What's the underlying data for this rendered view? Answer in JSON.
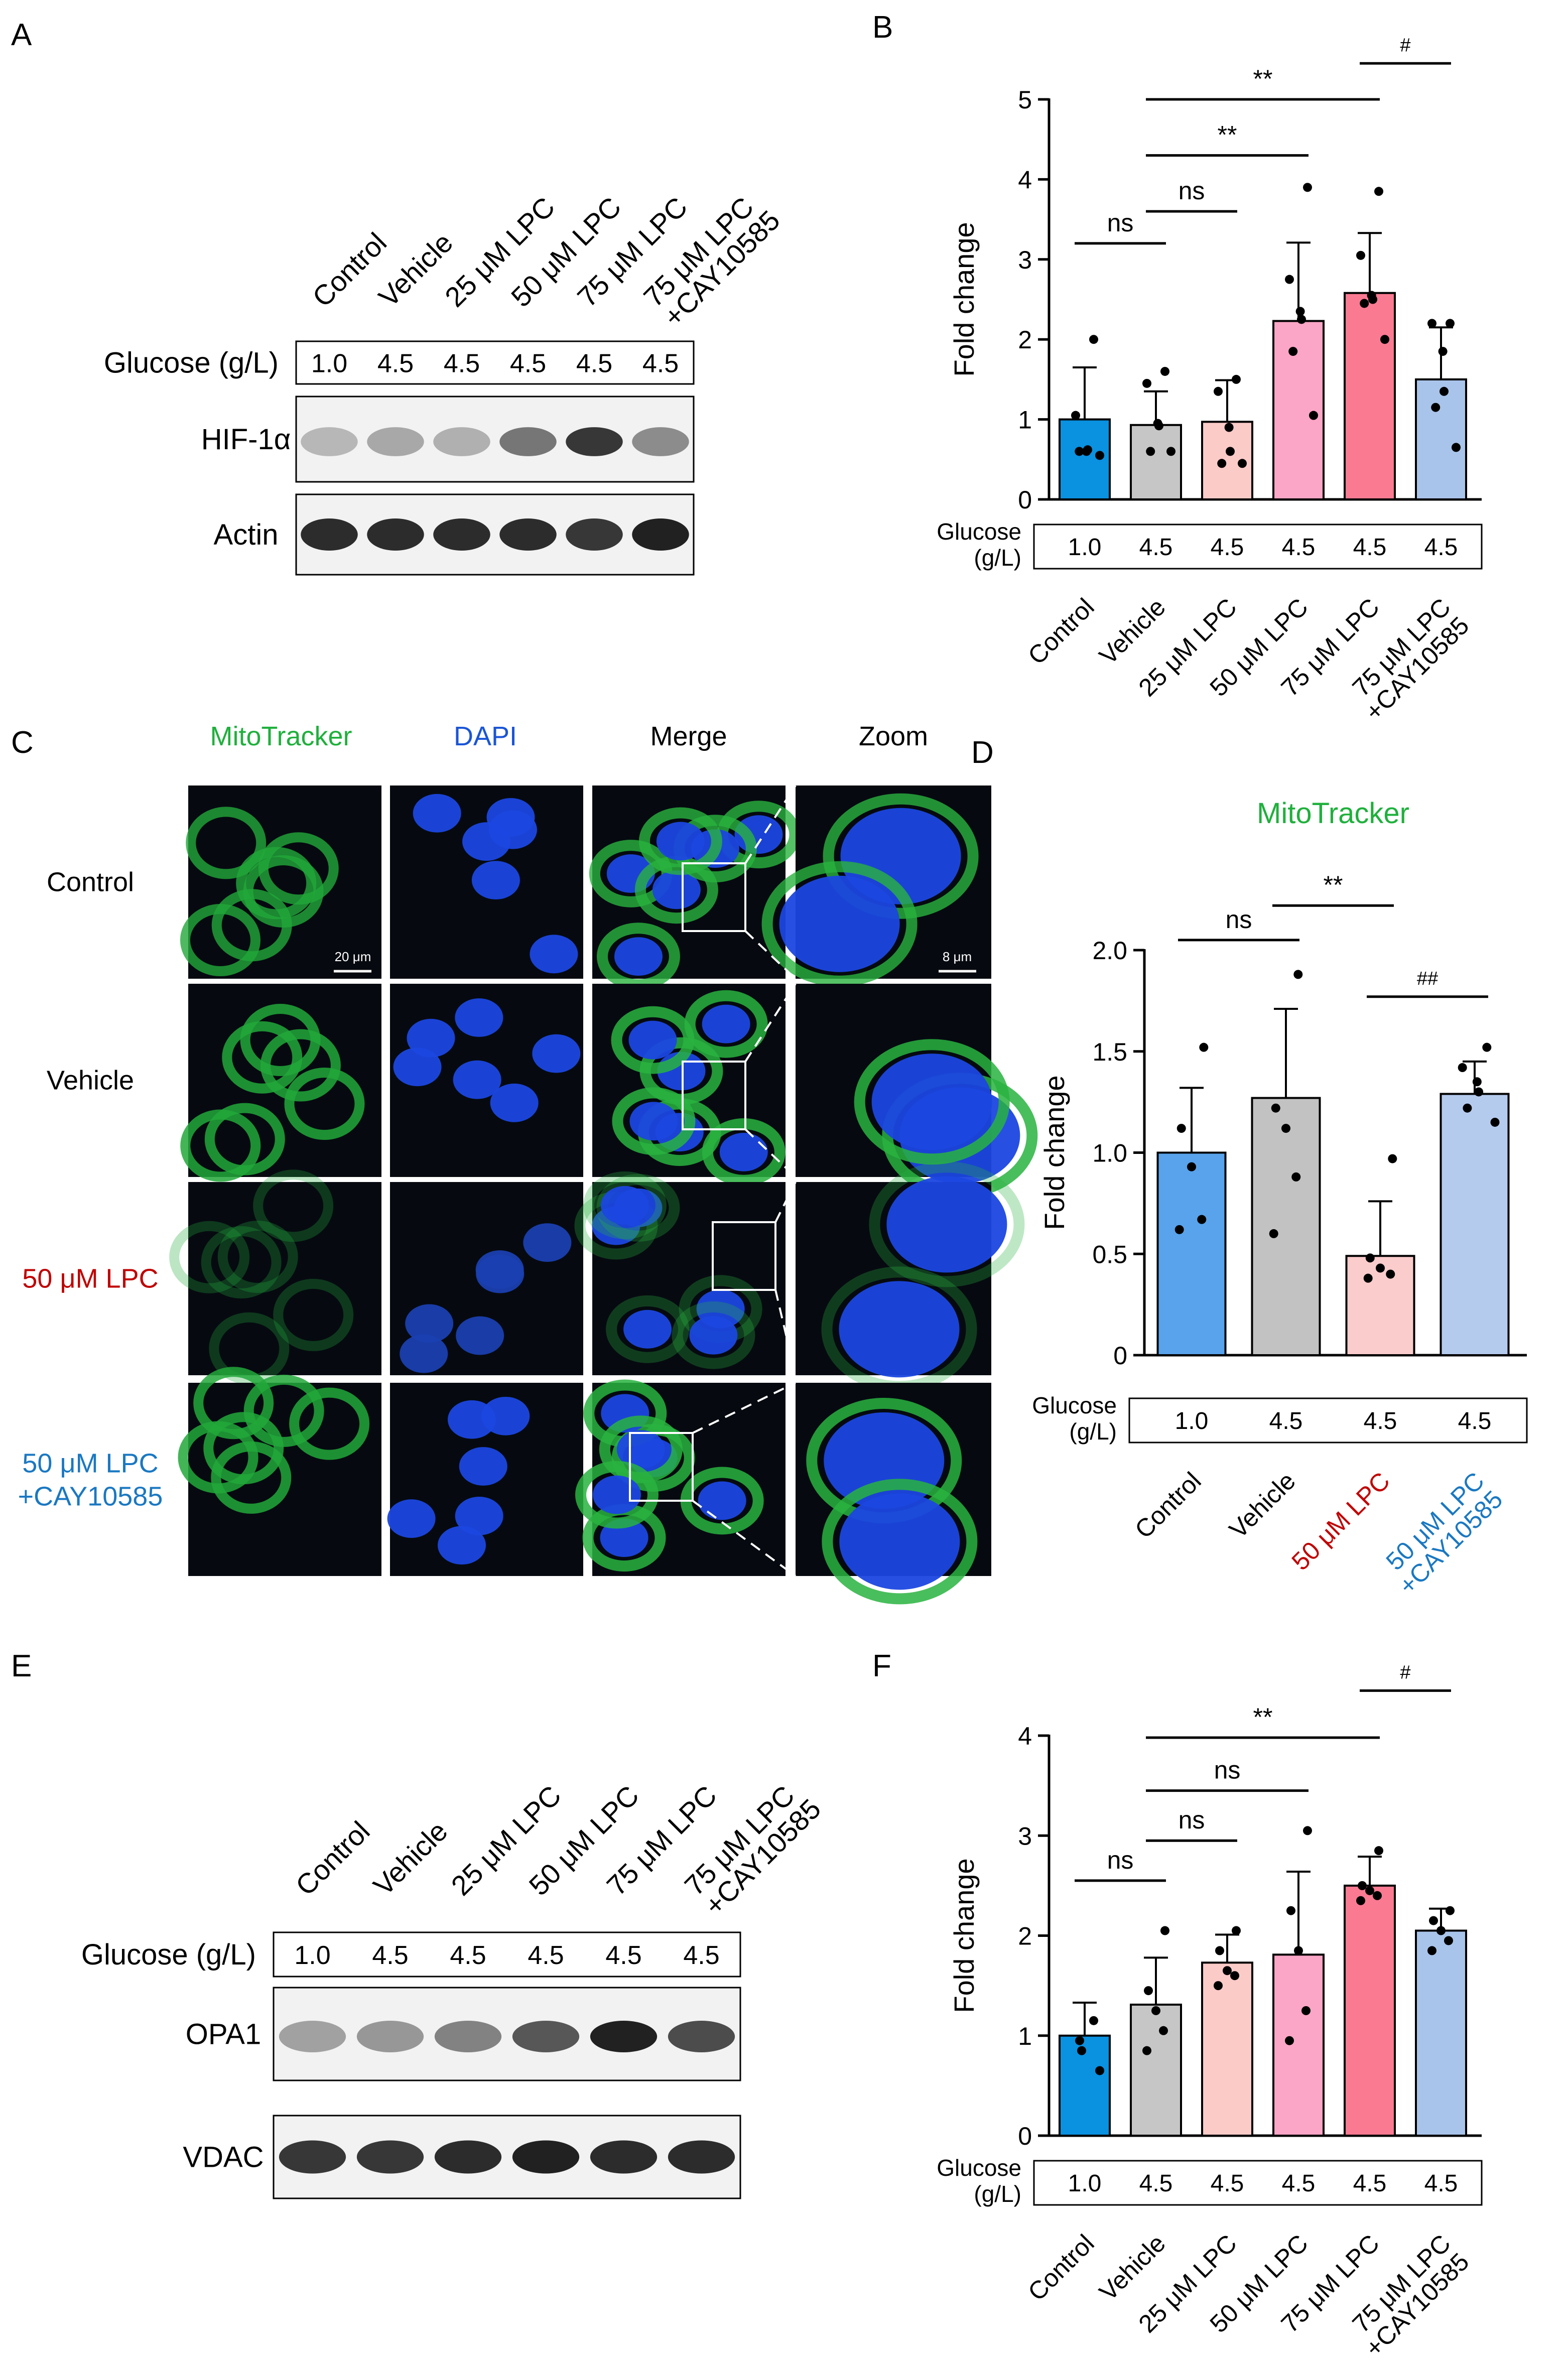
{
  "panels": {
    "A": {
      "label": "A",
      "lanes": [
        "Control",
        "Vehicle",
        "25 μM LPC",
        "50 μM LPC",
        "75 μM LPC",
        "75 μM LPC\n+CAY10585"
      ],
      "glucose_label": "Glucose (g/L)",
      "glucose_values": [
        "1.0",
        "4.5",
        "4.5",
        "4.5",
        "4.5",
        "4.5"
      ],
      "rows": [
        {
          "name": "HIF-1α",
          "intensity": [
            0.25,
            0.32,
            0.28,
            0.55,
            0.85,
            0.45
          ]
        },
        {
          "name": "Actin",
          "intensity": [
            0.9,
            0.9,
            0.9,
            0.9,
            0.85,
            0.95
          ]
        }
      ]
    },
    "C": {
      "label": "C",
      "columns": [
        {
          "name": "MitoTracker",
          "color": "#1fb03c"
        },
        {
          "name": "DAPI",
          "color": "#1a55d6"
        },
        {
          "name": "Merge",
          "color": "#000000"
        },
        {
          "name": "Zoom",
          "color": "#000000"
        }
      ],
      "rows": [
        {
          "name": "Control",
          "color": "#000000",
          "green_level": 0.8
        },
        {
          "name": "Vehicle",
          "color": "#000000",
          "green_level": 0.85
        },
        {
          "name": "50 μM LPC",
          "color": "#c00000",
          "green_level": 0.3
        },
        {
          "name": "50 μM LPC\n+CAY10585",
          "color": "#1a78c2",
          "green_level": 0.85
        }
      ],
      "scale_bars": [
        "20 μm",
        "8 μm"
      ]
    },
    "E": {
      "label": "E",
      "lanes": [
        "Control",
        "Vehicle",
        "25 μM LPC",
        "50 μM LPC",
        "75 μM LPC",
        "75 μM LPC\n+CAY10585"
      ],
      "glucose_label": "Glucose (g/L)",
      "glucose_values": [
        "1.0",
        "4.5",
        "4.5",
        "4.5",
        "4.5",
        "4.5"
      ],
      "rows": [
        {
          "name": "OPA1",
          "intensity": [
            0.35,
            0.4,
            0.5,
            0.7,
            0.95,
            0.75
          ]
        },
        {
          "name": "VDAC",
          "intensity": [
            0.85,
            0.85,
            0.9,
            0.95,
            0.9,
            0.9
          ]
        }
      ]
    }
  },
  "chart_data": [
    {
      "panel": "B",
      "type": "bar",
      "ylabel": "Fold change",
      "ylim": [
        0,
        5
      ],
      "yticks": [
        "0",
        "1",
        "2",
        "3",
        "4",
        "5"
      ],
      "categories": [
        "Control",
        "Vehicle",
        "25 μM LPC",
        "50 μM LPC",
        "75 μM LPC",
        "75 μM LPC\n+CAY10585"
      ],
      "category_colors": [
        "#000000",
        "#000000",
        "#000000",
        "#000000",
        "#000000",
        "#000000"
      ],
      "bar_colors": [
        "#0a91e0",
        "#c6c6c6",
        "#fbcbc8",
        "#fba6c6",
        "#fa7a92",
        "#a9c4ea"
      ],
      "values": [
        1.0,
        0.93,
        0.97,
        2.23,
        2.58,
        1.5
      ],
      "errors": [
        0.65,
        0.42,
        0.52,
        0.98,
        0.75,
        0.65
      ],
      "points": [
        [
          2.0,
          1.05,
          0.6,
          0.62,
          0.6,
          0.55
        ],
        [
          1.6,
          1.45,
          0.95,
          0.92,
          0.6,
          0.6
        ],
        [
          1.5,
          1.35,
          0.9,
          0.6,
          0.45,
          0.45
        ],
        [
          3.9,
          2.75,
          2.35,
          2.25,
          1.85,
          1.05
        ],
        [
          3.85,
          3.05,
          2.55,
          2.5,
          2.45,
          2.0
        ],
        [
          2.2,
          2.2,
          1.85,
          1.35,
          1.15,
          0.65
        ]
      ],
      "glucose_label": "Glucose\n(g/L)",
      "glucose_values": [
        "1.0",
        "4.5",
        "4.5",
        "4.5",
        "4.5",
        "4.5"
      ],
      "significance": [
        {
          "from": 0,
          "to": 1,
          "text": "ns",
          "y": 3.2
        },
        {
          "from": 1,
          "to": 2,
          "text": "ns",
          "y": 3.6
        },
        {
          "from": 1,
          "to": 3,
          "text": "**",
          "y": 4.3
        },
        {
          "from": 1,
          "to": 4,
          "text": "**",
          "y": 5.0
        },
        {
          "from": 4,
          "to": 5,
          "text": "#",
          "y": 5.45
        }
      ]
    },
    {
      "panel": "D",
      "type": "bar",
      "title": "MitoTracker",
      "title_color": "#1fb03c",
      "ylabel": "Fold change",
      "ylim": [
        0,
        2.0
      ],
      "yticks": [
        "0",
        "0.5",
        "1.0",
        "1.5",
        "2.0"
      ],
      "categories": [
        "Control",
        "Vehicle",
        "50 μM LPC",
        "50 μM LPC\n+CAY10585"
      ],
      "category_colors": [
        "#000000",
        "#000000",
        "#c00000",
        "#1a78c2"
      ],
      "bar_colors": [
        "#58a3eb",
        "#c2c2c2",
        "#fbcccc",
        "#b5cbee"
      ],
      "values": [
        1.0,
        1.27,
        0.49,
        1.29
      ],
      "errors": [
        0.32,
        0.44,
        0.27,
        0.16
      ],
      "points": [
        [
          1.52,
          1.12,
          0.93,
          0.67,
          0.62
        ],
        [
          1.88,
          1.22,
          1.12,
          0.88,
          0.6
        ],
        [
          0.97,
          0.48,
          0.43,
          0.4,
          0.38
        ],
        [
          1.52,
          1.42,
          1.35,
          1.3,
          1.22,
          1.15
        ]
      ],
      "glucose_label": "Glucose\n(g/L)",
      "glucose_values": [
        "1.0",
        "4.5",
        "4.5",
        "4.5"
      ],
      "significance": [
        {
          "from": 0,
          "to": 1,
          "text": "ns",
          "y": 2.05
        },
        {
          "from": 1,
          "to": 2,
          "text": "**",
          "y": 2.22
        },
        {
          "from": 2,
          "to": 3,
          "text": "##",
          "y": 1.77
        }
      ]
    },
    {
      "panel": "F",
      "type": "bar",
      "ylabel": "Fold change",
      "ylim": [
        0,
        4
      ],
      "yticks": [
        "0",
        "1",
        "2",
        "3",
        "4"
      ],
      "categories": [
        "Control",
        "Vehicle",
        "25 μM LPC",
        "50 μM LPC",
        "75 μM LPC",
        "75 μM LPC\n+CAY10585"
      ],
      "category_colors": [
        "#000000",
        "#000000",
        "#000000",
        "#000000",
        "#000000",
        "#000000"
      ],
      "bar_colors": [
        "#0a91e0",
        "#c6c6c6",
        "#fbcbc8",
        "#fba6c6",
        "#fa7a92",
        "#a9c4ea"
      ],
      "values": [
        1.0,
        1.31,
        1.73,
        1.81,
        2.5,
        2.05
      ],
      "errors": [
        0.33,
        0.47,
        0.28,
        0.83,
        0.29,
        0.22
      ],
      "points": [
        [
          1.15,
          0.95,
          0.85,
          0.65
        ],
        [
          2.05,
          1.45,
          1.25,
          1.05,
          0.85
        ],
        [
          2.05,
          1.85,
          1.65,
          1.6,
          1.5
        ],
        [
          3.05,
          2.25,
          1.85,
          1.25,
          0.95
        ],
        [
          2.85,
          2.5,
          2.45,
          2.4,
          2.35
        ],
        [
          2.25,
          2.15,
          2.05,
          1.95,
          1.85
        ]
      ],
      "glucose_label": "Glucose\n(g/L)",
      "glucose_values": [
        "1.0",
        "4.5",
        "4.5",
        "4.5",
        "4.5",
        "4.5"
      ],
      "significance": [
        {
          "from": 0,
          "to": 1,
          "text": "ns",
          "y": 2.55
        },
        {
          "from": 1,
          "to": 2,
          "text": "ns",
          "y": 2.95
        },
        {
          "from": 1,
          "to": 3,
          "text": "ns",
          "y": 3.45
        },
        {
          "from": 1,
          "to": 4,
          "text": "**",
          "y": 3.98
        },
        {
          "from": 4,
          "to": 5,
          "text": "#",
          "y": 4.45
        }
      ]
    }
  ],
  "panel_labels": [
    "A",
    "B",
    "C",
    "D",
    "E",
    "F"
  ]
}
